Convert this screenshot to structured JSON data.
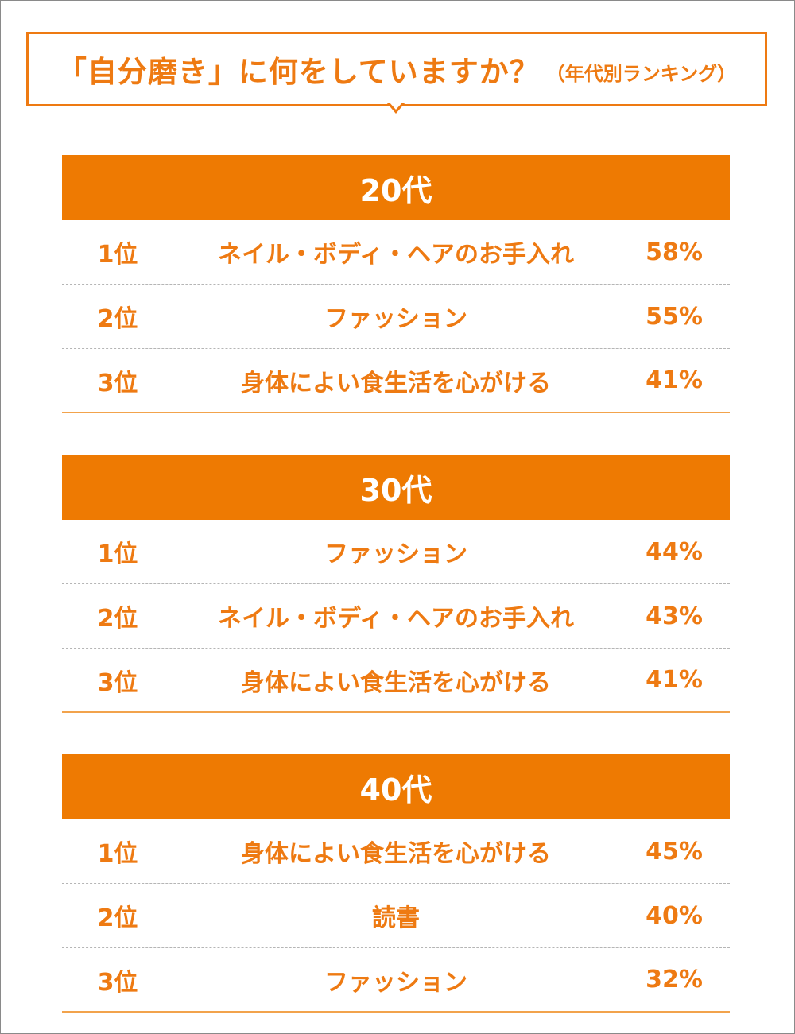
{
  "title": {
    "main": "「自分磨き」に何をしていますか？",
    "sub": "（年代別ランキング）"
  },
  "sections": [
    {
      "label": "20代",
      "rows": [
        {
          "rank": "1位",
          "item": "ネイル・ボディ・ヘアのお手入れ",
          "percent": "58%"
        },
        {
          "rank": "2位",
          "item": "ファッション",
          "percent": "55%"
        },
        {
          "rank": "3位",
          "item": "身体によい食生活を心がける",
          "percent": "41%"
        }
      ]
    },
    {
      "label": "30代",
      "rows": [
        {
          "rank": "1位",
          "item": "ファッション",
          "percent": "44%"
        },
        {
          "rank": "2位",
          "item": "ネイル・ボディ・ヘアのお手入れ",
          "percent": "43%"
        },
        {
          "rank": "3位",
          "item": "身体によい食生活を心がける",
          "percent": "41%"
        }
      ]
    },
    {
      "label": "40代",
      "rows": [
        {
          "rank": "1位",
          "item": "身体によい食生活を心がける",
          "percent": "45%"
        },
        {
          "rank": "2位",
          "item": "読書",
          "percent": "40%"
        },
        {
          "rank": "3位",
          "item": "ファッション",
          "percent": "32%"
        }
      ]
    }
  ],
  "colors": {
    "accent": "#ee7a02",
    "text": "#ee7a12",
    "divider": "#b5b5b5"
  }
}
